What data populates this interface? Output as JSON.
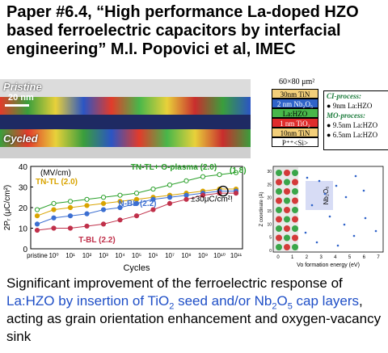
{
  "title": "Paper #6.4, “High performance La-doped HZO based ferroelectric capacitors by interfacial engineering” M.I. Popovici et al, IMEC",
  "tem": {
    "pristine_label": "Pristine",
    "cycled_label": "Cycled",
    "scale_label": "20 nm"
  },
  "stack": {
    "dimension": "60×80 μm²",
    "layers": [
      {
        "label": "30nm TiN",
        "color": "#f3cf7a",
        "text_color": "#000"
      },
      {
        "label": "2 nm Nb₂O₅",
        "color": "#2f63c9",
        "text_color": "#fff"
      },
      {
        "label": "La:HZO",
        "color": "#48b74a",
        "text_color": "#000"
      },
      {
        "label": "1 nm TiO₂",
        "color": "#e02c2c",
        "text_color": "#fff"
      },
      {
        "label": "10nm TiN",
        "color": "#f3cf7a",
        "text_color": "#000"
      },
      {
        "label": "P⁺⁺<Si>",
        "color": "#ffffff",
        "text_color": "#000"
      }
    ],
    "ci_heading": "CI-process:",
    "ci_items": [
      "9nm La:HZO"
    ],
    "mo_heading": "MO-process:",
    "mo_items": [
      "9.5nm La:HZO",
      "6.5nm La:HZO"
    ]
  },
  "chart_data": {
    "type": "line",
    "xlabel": "Cycles",
    "ylabel": "2Pᵣ (μC/cm²)",
    "unit_label": "(MV/cm)",
    "ylim": [
      0,
      40
    ],
    "yticks": [
      0,
      10,
      20,
      30,
      40
    ],
    "categories": [
      "pristine",
      "10⁰",
      "10¹",
      "10²",
      "10³",
      "10⁴",
      "10⁵",
      "10⁶",
      "10⁷",
      "10⁸",
      "10⁹",
      "10¹⁰",
      "10¹¹"
    ],
    "series": [
      {
        "name": "TN-TL+ O-plasma (2.0)",
        "color": "#2aa02a",
        "values": [
          19,
          22,
          23,
          24,
          25,
          26,
          27,
          29,
          31,
          33,
          35,
          36,
          37
        ]
      },
      {
        "name": "TN-TL (2.0)",
        "color": "#d9a400",
        "values": [
          16,
          19,
          20,
          21,
          22,
          23,
          24,
          25,
          26,
          27,
          28,
          29,
          29
        ]
      },
      {
        "name": "N-BL (2.2)",
        "color": "#3c6fd1",
        "values": [
          12,
          15,
          16,
          17,
          19,
          20,
          22,
          24,
          25,
          26,
          27,
          28,
          28
        ]
      },
      {
        "name": "T-BL (2.2)",
        "color": "#c0304a",
        "values": [
          9,
          10,
          10,
          11,
          12,
          14,
          16,
          19,
          22,
          24,
          26,
          27,
          27
        ]
      }
    ],
    "annotations": [
      "(1.8)",
      "±30μC/cm²!"
    ]
  },
  "inset_chart": {
    "ylabel": "Z coordinate (Å)",
    "xlabel": "Vo formation energy (eV)",
    "label": "Nb₂O₅",
    "xticks": [
      "0",
      "1",
      "2",
      "3",
      "4",
      "5",
      "6",
      "7"
    ],
    "yticks": [
      "0",
      "5",
      "10",
      "15",
      "20",
      "25",
      "30"
    ]
  },
  "caption": {
    "part1": "Significant improvement of the ferroelectric response of ",
    "hl1": "La:HZO by insertion of TiO",
    "hl1_sub": "2",
    "hl2": " seed and/or Nb",
    "hl2_sub": "2",
    "hl3": "O",
    "hl3_sub": "5",
    "hl4": " cap layers",
    "part2": ", acting as grain orientation enhancement and oxygen-vacancy sink"
  }
}
